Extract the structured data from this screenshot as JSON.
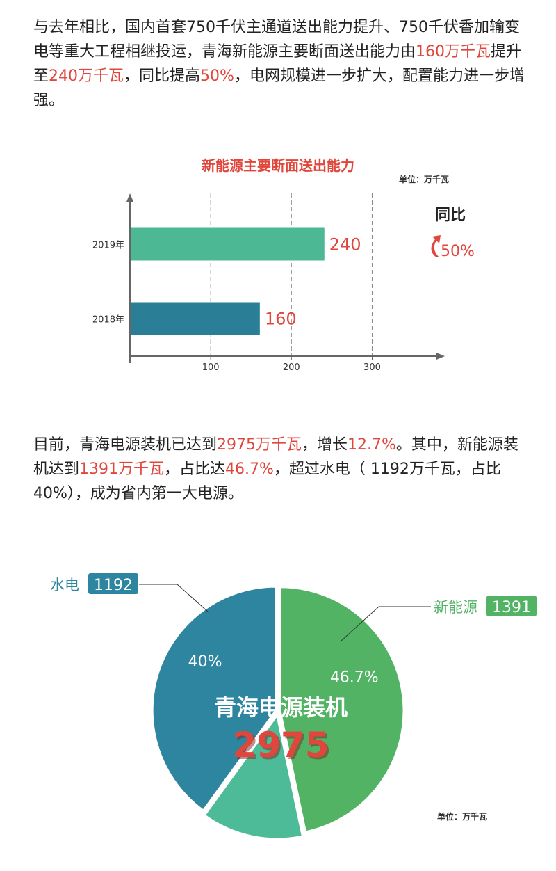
{
  "paragraphs": [
    [
      {
        "text": "与去年相比，国内首套750千伏主通道送出能力提升、750千伏香加输变电等重大工程相继投运，青海新能源主要断面送出能力由"
      },
      {
        "text": "160万千瓦",
        "color": "#e0463c"
      },
      {
        "text": "提升至"
      },
      {
        "text": "240万千瓦",
        "color": "#e0463c"
      },
      {
        "text": "，同比提高"
      },
      {
        "text": "50%",
        "color": "#e0463c"
      },
      {
        "text": "，电网规模进一步扩大，配置能力进一步增强。"
      }
    ],
    [
      {
        "text": "目前，青海电源装机已达到"
      },
      {
        "text": "2975万千瓦",
        "color": "#e0463c"
      },
      {
        "text": "，增长"
      },
      {
        "text": "12.7%",
        "color": "#e0463c"
      },
      {
        "text": "。其中，新能源装机达到"
      },
      {
        "text": "1391万千瓦",
        "color": "#e0463c"
      },
      {
        "text": "，占比达"
      },
      {
        "text": "46.7%",
        "color": "#e0463c"
      },
      {
        "text": "，超过水电（ 1192万千瓦，占比40%），成为省内第一大电源。"
      }
    ]
  ],
  "chart_data": [
    {
      "type": "bar",
      "orientation": "horizontal",
      "title": "新能源主要断面送出能力",
      "unit": "单位：万千瓦",
      "categories": [
        "2019年",
        "2018年"
      ],
      "values": [
        240,
        160
      ],
      "colors": [
        "#4db894",
        "#2a7f96"
      ],
      "xlim": [
        0,
        390
      ],
      "xticks": [
        100,
        200,
        300
      ],
      "grid": true,
      "annotations": [
        "同比",
        "50%"
      ]
    },
    {
      "type": "pie",
      "title": "青海电源装机",
      "total": 2975,
      "unit": "单位：万千瓦",
      "categories": [
        "新能源",
        null,
        "水电"
      ],
      "values": [
        46.7,
        13.3,
        40
      ],
      "value_labels": [
        "46.7%",
        null,
        "40%"
      ],
      "amounts": [
        1391,
        null,
        1192
      ],
      "colors": [
        "#52b365",
        "#4dbb98",
        "#2e85a0"
      ]
    }
  ]
}
